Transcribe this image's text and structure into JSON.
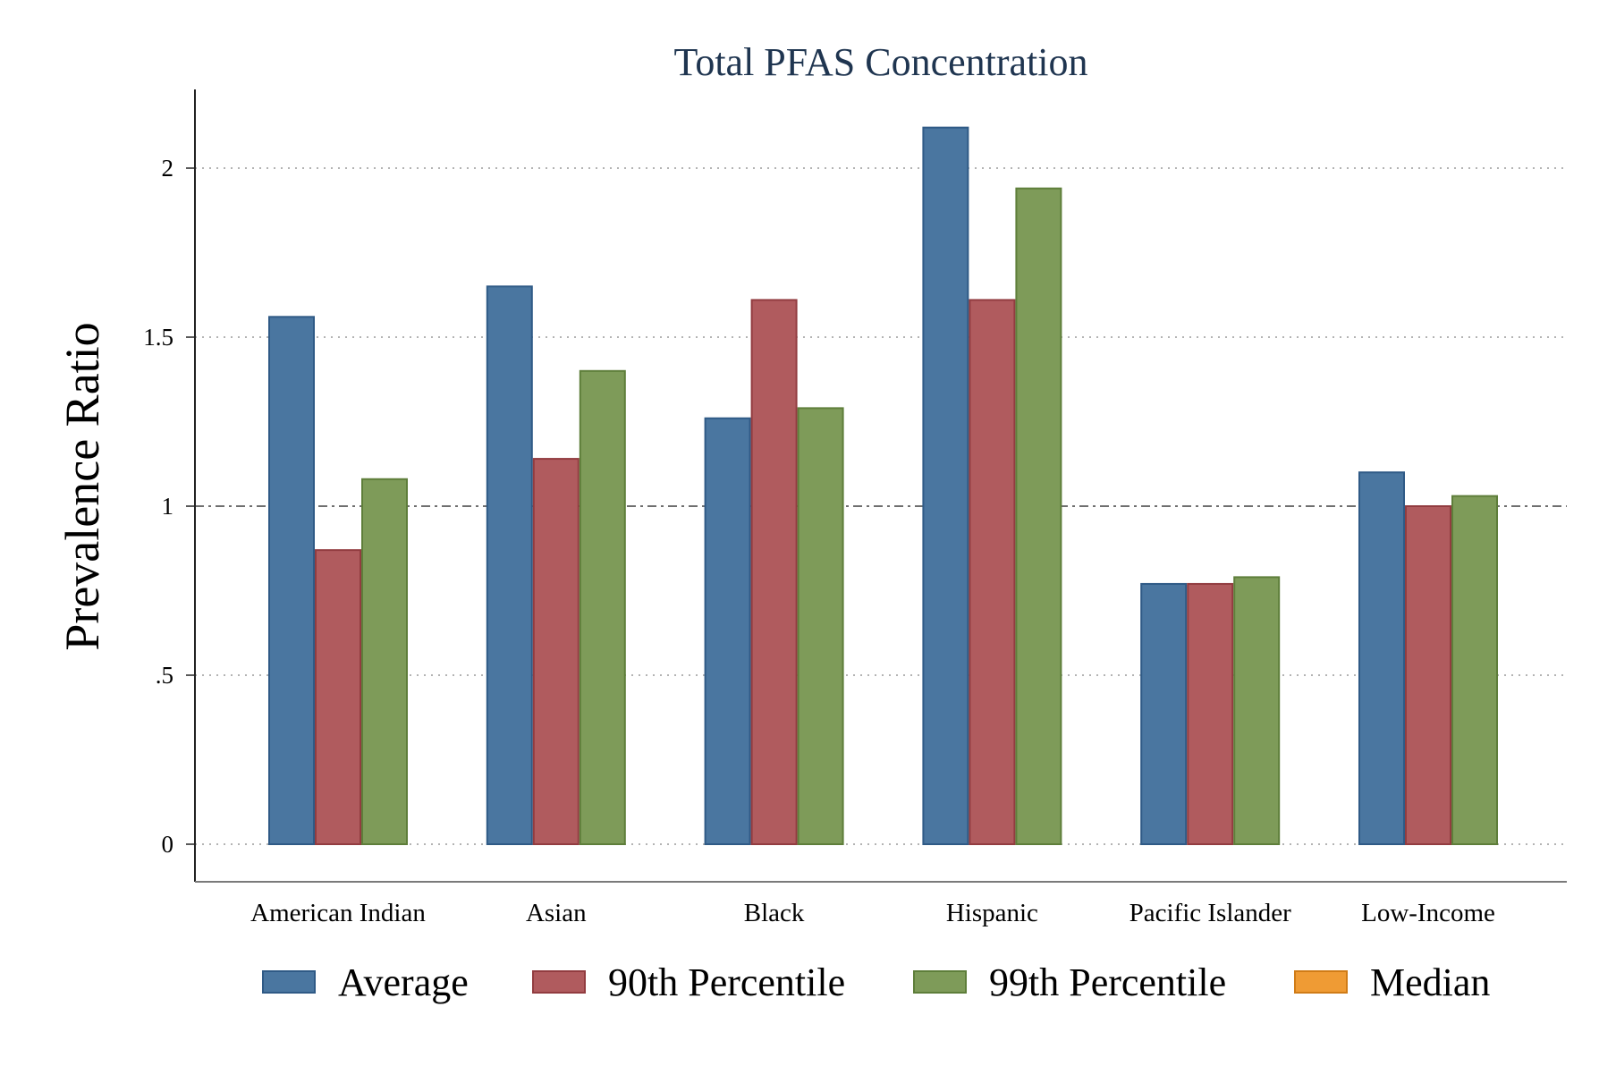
{
  "chart_data": {
    "type": "bar",
    "title": "Total PFAS Concentration",
    "xlabel": "",
    "ylabel": "Prevalence Ratio",
    "ylim": [
      0,
      2.2
    ],
    "y_ticks": [
      {
        "value": 0,
        "label": "0"
      },
      {
        "value": 0.5,
        "label": ".5"
      },
      {
        "value": 1,
        "label": "1"
      },
      {
        "value": 1.5,
        "label": "1.5"
      },
      {
        "value": 2,
        "label": "2"
      }
    ],
    "reference_line": 1,
    "grid": true,
    "legend_position": "bottom",
    "categories": [
      "American Indian",
      "Asian",
      "Black",
      "Hispanic",
      "Pacific Islander",
      "Low-Income"
    ],
    "series": [
      {
        "name": "Average",
        "color": "#4a76a0",
        "stroke": "#2f5a86",
        "values": [
          1.56,
          1.65,
          1.26,
          2.12,
          0.77,
          1.1
        ]
      },
      {
        "name": "90th Percentile",
        "color": "#b05b5e",
        "stroke": "#923c40",
        "values": [
          0.87,
          1.14,
          1.61,
          1.61,
          0.77,
          1.0
        ]
      },
      {
        "name": "99th Percentile",
        "color": "#7e9b59",
        "stroke": "#5e7e3a",
        "values": [
          1.08,
          1.4,
          1.29,
          1.94,
          0.79,
          1.03
        ]
      },
      {
        "name": "Median",
        "color": "#ef9b34",
        "stroke": "#d07c17",
        "values": [
          null,
          null,
          null,
          null,
          null,
          null
        ]
      }
    ]
  }
}
